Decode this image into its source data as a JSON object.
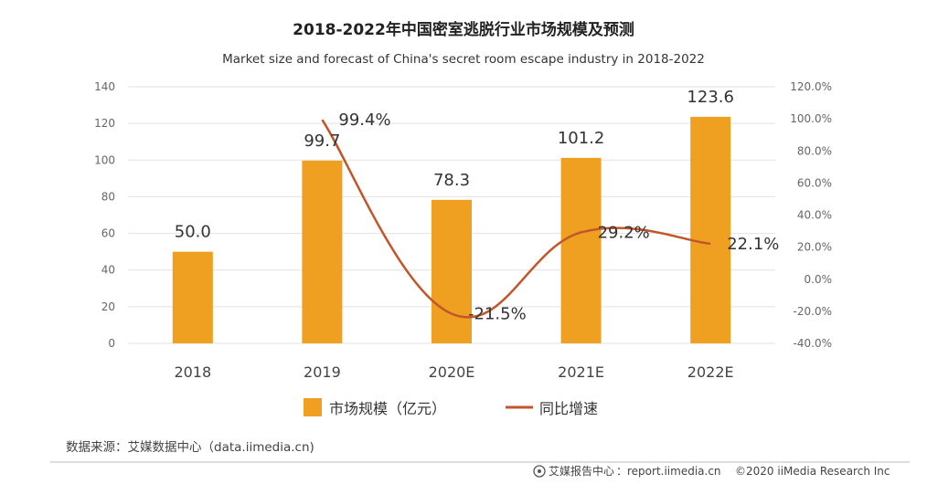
{
  "chart_data": {
    "type": "bar",
    "title": "2018-2022年中国密室逃脱行业市场规模及预测",
    "subtitle": "Market size and forecast of China's secret room escape industry in 2018-2022",
    "categories": [
      "2018",
      "2019",
      "2020E",
      "2021E",
      "2022E"
    ],
    "series": [
      {
        "name": "市场规模（亿元）",
        "type": "bar",
        "axis": "left",
        "values": [
          50.0,
          99.7,
          78.3,
          101.2,
          123.6
        ],
        "labels": [
          "50.0",
          "99.7",
          "78.3",
          "101.2",
          "123.6"
        ],
        "color": "#f0a020"
      },
      {
        "name": "同比增速",
        "type": "line",
        "axis": "right",
        "values": [
          null,
          99.4,
          -21.5,
          29.2,
          22.1
        ],
        "labels": [
          "",
          "99.4%",
          "-21.5%",
          "29.2%",
          "22.1%"
        ],
        "color": "#c0562a"
      }
    ],
    "y_left": {
      "min": 0,
      "max": 140,
      "ticks": [
        "0",
        "20",
        "40",
        "60",
        "80",
        "100",
        "120",
        "140"
      ]
    },
    "y_right": {
      "min": -40,
      "max": 120,
      "ticks": [
        "-40.0%",
        "-20.0%",
        "0.0%",
        "20.0%",
        "40.0%",
        "60.0%",
        "80.0%",
        "100.0%",
        "120.0%"
      ]
    },
    "grid": true,
    "legend_position": "bottom"
  },
  "source": "数据来源：艾媒数据中心（data.iimedia.cn)",
  "footer": {
    "logo_text": "艾媒报告中心",
    "site": "：report.iimedia.cn",
    "copyright": "©2020  iiMedia Research  Inc"
  }
}
